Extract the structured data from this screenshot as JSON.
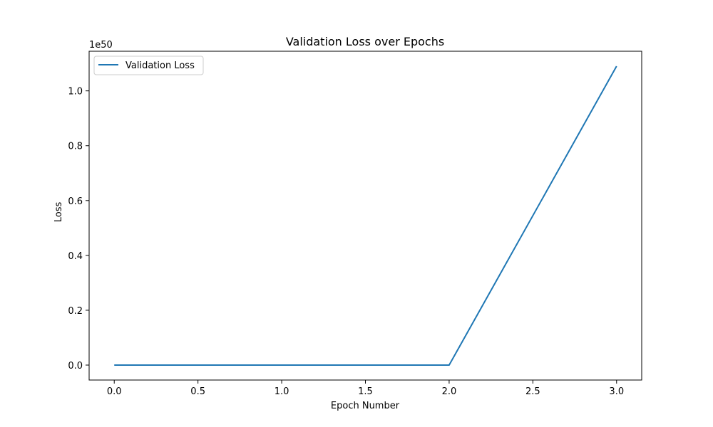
{
  "chart_data": {
    "type": "line",
    "title": "Validation Loss over Epochs",
    "xlabel": "Epoch Number",
    "ylabel": "Loss",
    "y_offset_label": "1e50",
    "x": [
      0,
      1,
      2,
      3
    ],
    "series": [
      {
        "name": "Validation Loss",
        "color": "#1f77b4",
        "values": [
          0,
          0,
          0,
          1.09e+50
        ]
      }
    ],
    "xlim": [
      -0.15,
      3.15
    ],
    "ylim": [
      -5.45e+48,
      1.1445e+50
    ],
    "x_ticks": [
      0.0,
      0.5,
      1.0,
      1.5,
      2.0,
      2.5,
      3.0
    ],
    "x_tick_labels": [
      "0.0",
      "0.5",
      "1.0",
      "1.5",
      "2.0",
      "2.5",
      "3.0"
    ],
    "y_ticks": [
      0,
      2e+49,
      4e+49,
      6e+49,
      8e+49,
      1e+50
    ],
    "y_tick_labels": [
      "0.0",
      "0.2",
      "0.4",
      "0.6",
      "0.8",
      "1.0"
    ],
    "grid": false,
    "legend_position": "upper-left"
  }
}
